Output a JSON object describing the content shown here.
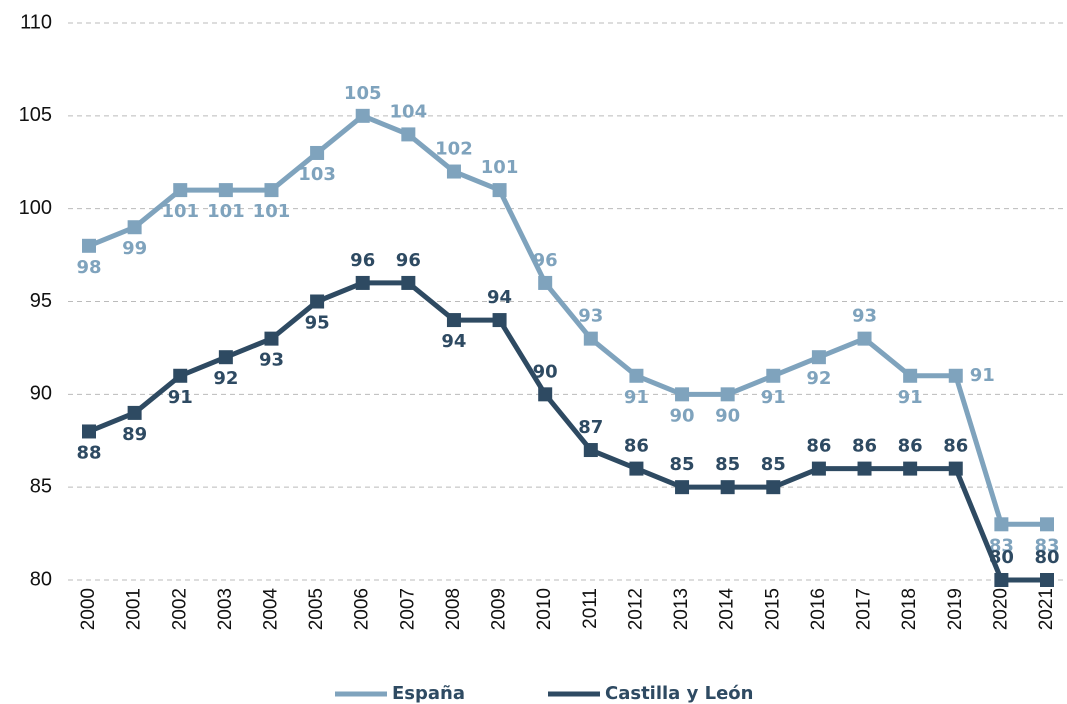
{
  "chart_data": {
    "type": "line",
    "categories": [
      "2000",
      "2001",
      "2002",
      "2003",
      "2004",
      "2005",
      "2006",
      "2007",
      "2008",
      "2009",
      "2010",
      "2011",
      "2012",
      "2013",
      "2014",
      "2015",
      "2016",
      "2017",
      "2018",
      "2019",
      "2020",
      "2021"
    ],
    "series": [
      {
        "name": "España",
        "color": "#7fa3bd",
        "values": [
          98,
          99,
          101,
          101,
          101,
          103,
          105,
          104,
          102,
          101,
          96,
          93,
          91,
          90,
          90,
          91,
          92,
          93,
          91,
          91,
          83,
          83
        ]
      },
      {
        "name": "Castilla y León",
        "color": "#2e4a62",
        "values": [
          88,
          89,
          91,
          92,
          93,
          95,
          96,
          96,
          94,
          94,
          90,
          87,
          86,
          85,
          85,
          85,
          86,
          86,
          86,
          86,
          80,
          80
        ]
      }
    ],
    "ylim": [
      80,
      110
    ],
    "yticks": [
      80,
      85,
      90,
      95,
      100,
      105,
      110
    ],
    "grid": true,
    "legend": "bottom"
  }
}
